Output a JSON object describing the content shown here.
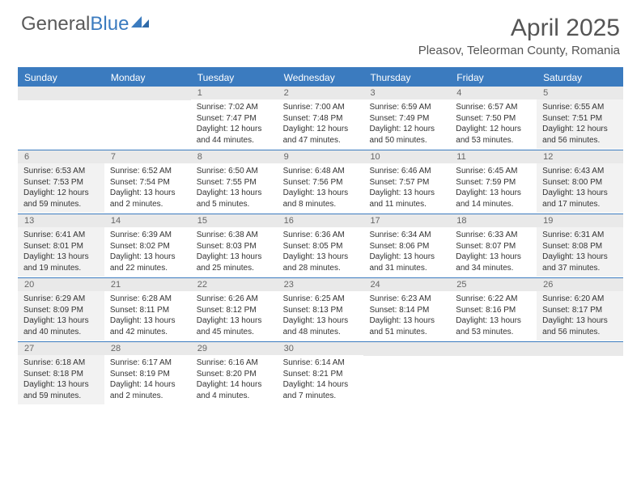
{
  "logo": {
    "word1": "General",
    "word2": "Blue"
  },
  "title": "April 2025",
  "location": "Pleasov, Teleorman County, Romania",
  "colors": {
    "accent": "#3b7bbf",
    "header_text": "#555555",
    "cell_text": "#333333",
    "daybar_bg": "#e9e9e9",
    "shaded_bg": "#f2f2f2"
  },
  "dow": [
    "Sunday",
    "Monday",
    "Tuesday",
    "Wednesday",
    "Thursday",
    "Friday",
    "Saturday"
  ],
  "weeks": [
    [
      {
        "n": "",
        "sr": "",
        "ss": "",
        "dl": ""
      },
      {
        "n": "",
        "sr": "",
        "ss": "",
        "dl": ""
      },
      {
        "n": "1",
        "sr": "Sunrise: 7:02 AM",
        "ss": "Sunset: 7:47 PM",
        "dl": "Daylight: 12 hours and 44 minutes."
      },
      {
        "n": "2",
        "sr": "Sunrise: 7:00 AM",
        "ss": "Sunset: 7:48 PM",
        "dl": "Daylight: 12 hours and 47 minutes."
      },
      {
        "n": "3",
        "sr": "Sunrise: 6:59 AM",
        "ss": "Sunset: 7:49 PM",
        "dl": "Daylight: 12 hours and 50 minutes."
      },
      {
        "n": "4",
        "sr": "Sunrise: 6:57 AM",
        "ss": "Sunset: 7:50 PM",
        "dl": "Daylight: 12 hours and 53 minutes."
      },
      {
        "n": "5",
        "sr": "Sunrise: 6:55 AM",
        "ss": "Sunset: 7:51 PM",
        "dl": "Daylight: 12 hours and 56 minutes.",
        "shaded": true
      }
    ],
    [
      {
        "n": "6",
        "sr": "Sunrise: 6:53 AM",
        "ss": "Sunset: 7:53 PM",
        "dl": "Daylight: 12 hours and 59 minutes.",
        "shaded": true
      },
      {
        "n": "7",
        "sr": "Sunrise: 6:52 AM",
        "ss": "Sunset: 7:54 PM",
        "dl": "Daylight: 13 hours and 2 minutes."
      },
      {
        "n": "8",
        "sr": "Sunrise: 6:50 AM",
        "ss": "Sunset: 7:55 PM",
        "dl": "Daylight: 13 hours and 5 minutes."
      },
      {
        "n": "9",
        "sr": "Sunrise: 6:48 AM",
        "ss": "Sunset: 7:56 PM",
        "dl": "Daylight: 13 hours and 8 minutes."
      },
      {
        "n": "10",
        "sr": "Sunrise: 6:46 AM",
        "ss": "Sunset: 7:57 PM",
        "dl": "Daylight: 13 hours and 11 minutes."
      },
      {
        "n": "11",
        "sr": "Sunrise: 6:45 AM",
        "ss": "Sunset: 7:59 PM",
        "dl": "Daylight: 13 hours and 14 minutes."
      },
      {
        "n": "12",
        "sr": "Sunrise: 6:43 AM",
        "ss": "Sunset: 8:00 PM",
        "dl": "Daylight: 13 hours and 17 minutes.",
        "shaded": true
      }
    ],
    [
      {
        "n": "13",
        "sr": "Sunrise: 6:41 AM",
        "ss": "Sunset: 8:01 PM",
        "dl": "Daylight: 13 hours and 19 minutes.",
        "shaded": true
      },
      {
        "n": "14",
        "sr": "Sunrise: 6:39 AM",
        "ss": "Sunset: 8:02 PM",
        "dl": "Daylight: 13 hours and 22 minutes."
      },
      {
        "n": "15",
        "sr": "Sunrise: 6:38 AM",
        "ss": "Sunset: 8:03 PM",
        "dl": "Daylight: 13 hours and 25 minutes."
      },
      {
        "n": "16",
        "sr": "Sunrise: 6:36 AM",
        "ss": "Sunset: 8:05 PM",
        "dl": "Daylight: 13 hours and 28 minutes."
      },
      {
        "n": "17",
        "sr": "Sunrise: 6:34 AM",
        "ss": "Sunset: 8:06 PM",
        "dl": "Daylight: 13 hours and 31 minutes."
      },
      {
        "n": "18",
        "sr": "Sunrise: 6:33 AM",
        "ss": "Sunset: 8:07 PM",
        "dl": "Daylight: 13 hours and 34 minutes."
      },
      {
        "n": "19",
        "sr": "Sunrise: 6:31 AM",
        "ss": "Sunset: 8:08 PM",
        "dl": "Daylight: 13 hours and 37 minutes.",
        "shaded": true
      }
    ],
    [
      {
        "n": "20",
        "sr": "Sunrise: 6:29 AM",
        "ss": "Sunset: 8:09 PM",
        "dl": "Daylight: 13 hours and 40 minutes.",
        "shaded": true
      },
      {
        "n": "21",
        "sr": "Sunrise: 6:28 AM",
        "ss": "Sunset: 8:11 PM",
        "dl": "Daylight: 13 hours and 42 minutes."
      },
      {
        "n": "22",
        "sr": "Sunrise: 6:26 AM",
        "ss": "Sunset: 8:12 PM",
        "dl": "Daylight: 13 hours and 45 minutes."
      },
      {
        "n": "23",
        "sr": "Sunrise: 6:25 AM",
        "ss": "Sunset: 8:13 PM",
        "dl": "Daylight: 13 hours and 48 minutes."
      },
      {
        "n": "24",
        "sr": "Sunrise: 6:23 AM",
        "ss": "Sunset: 8:14 PM",
        "dl": "Daylight: 13 hours and 51 minutes."
      },
      {
        "n": "25",
        "sr": "Sunrise: 6:22 AM",
        "ss": "Sunset: 8:16 PM",
        "dl": "Daylight: 13 hours and 53 minutes."
      },
      {
        "n": "26",
        "sr": "Sunrise: 6:20 AM",
        "ss": "Sunset: 8:17 PM",
        "dl": "Daylight: 13 hours and 56 minutes.",
        "shaded": true
      }
    ],
    [
      {
        "n": "27",
        "sr": "Sunrise: 6:18 AM",
        "ss": "Sunset: 8:18 PM",
        "dl": "Daylight: 13 hours and 59 minutes.",
        "shaded": true
      },
      {
        "n": "28",
        "sr": "Sunrise: 6:17 AM",
        "ss": "Sunset: 8:19 PM",
        "dl": "Daylight: 14 hours and 2 minutes."
      },
      {
        "n": "29",
        "sr": "Sunrise: 6:16 AM",
        "ss": "Sunset: 8:20 PM",
        "dl": "Daylight: 14 hours and 4 minutes."
      },
      {
        "n": "30",
        "sr": "Sunrise: 6:14 AM",
        "ss": "Sunset: 8:21 PM",
        "dl": "Daylight: 14 hours and 7 minutes."
      },
      {
        "n": "",
        "sr": "",
        "ss": "",
        "dl": ""
      },
      {
        "n": "",
        "sr": "",
        "ss": "",
        "dl": ""
      },
      {
        "n": "",
        "sr": "",
        "ss": "",
        "dl": ""
      }
    ]
  ]
}
